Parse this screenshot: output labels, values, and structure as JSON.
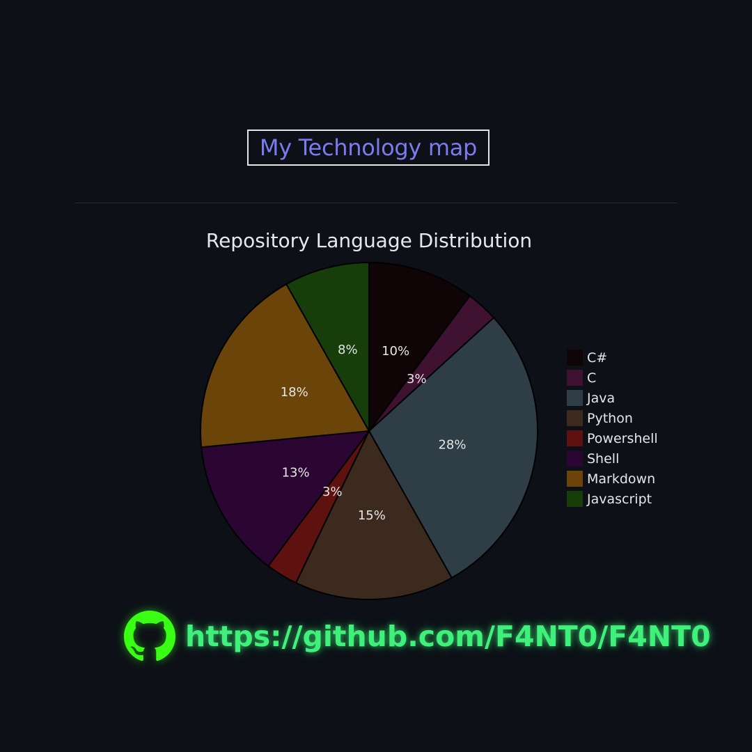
{
  "header": {
    "title": "My Technology map"
  },
  "chart_data": {
    "type": "pie",
    "title": "Repository Language Distribution",
    "categories": [
      "C#",
      "C",
      "Java",
      "Python",
      "Powershell",
      "Shell",
      "Markdown",
      "Javascript"
    ],
    "values": [
      10,
      3,
      28,
      15,
      3,
      13,
      18,
      8
    ],
    "labels": [
      "10%",
      "3%",
      "28%",
      "15%",
      "3%",
      "13%",
      "18%",
      "8%"
    ],
    "colors": [
      "#0f0507",
      "#3f1232",
      "#2f3e46",
      "#3d2a1f",
      "#5e120f",
      "#2b0633",
      "#6b4409",
      "#173d0a"
    ],
    "legend": "right",
    "start": "top, clockwise"
  },
  "footer": {
    "link_text": "https://github.com/F4NT0/F4NT0",
    "icon": "github-icon",
    "accent_color": "#3ff07a",
    "icon_color": "#39ff14"
  }
}
